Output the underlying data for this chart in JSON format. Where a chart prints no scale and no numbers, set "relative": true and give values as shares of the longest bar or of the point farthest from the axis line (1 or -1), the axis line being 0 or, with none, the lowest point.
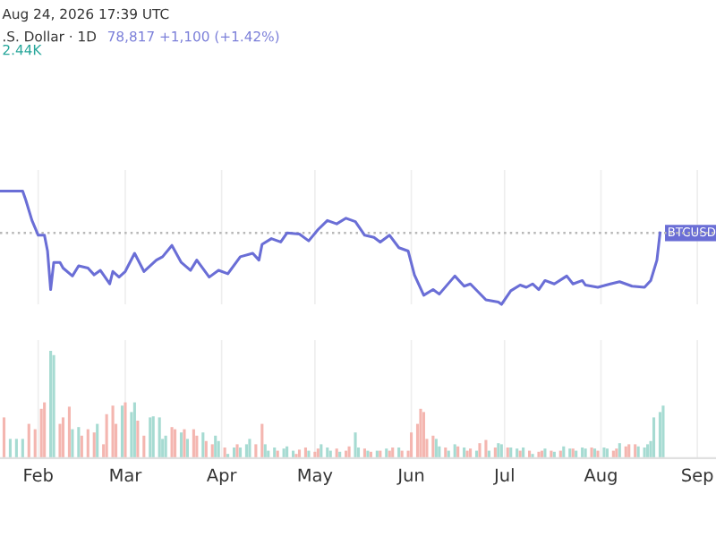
{
  "chart_data": [
    {
      "type": "line",
      "title": ".S. Dollar · 1D",
      "subtitle": "78,817 +1,100 (+1.42%)",
      "annotations": [
        "Aug 24, 2026 17:39 UTC"
      ],
      "relative": true,
      "grid": "x",
      "tick_labels": false,
      "xlim": [
        "2026-01-19T17:00",
        "2026-09-07"
      ],
      "xticks": [
        {
          "value": "2026-02-01",
          "label": null
        },
        {
          "value": "2026-03-01",
          "label": null
        },
        {
          "value": "2026-04-01",
          "label": null
        },
        {
          "value": "2026-05-01",
          "label": null
        },
        {
          "value": "2026-06-01",
          "label": null
        },
        {
          "value": "2026-07-01",
          "label": null
        },
        {
          "value": "2026-08-01",
          "label": null
        },
        {
          "value": "2026-09-01",
          "label": null
        }
      ],
      "ref_lines": [
        {
          "axis": "y",
          "value": 0.63,
          "label": "BTCUSD",
          "color": "#b8b8b8",
          "line_style": "dotted"
        }
      ],
      "series": [
        {
          "color": "#6a6ed6",
          "x": [
            "2026-01-20",
            "2026-01-27",
            "2026-01-28",
            "2026-01-30",
            "2026-02-01",
            "2026-02-03",
            "2026-02-04",
            "2026-02-05",
            "2026-02-06",
            "2026-02-08",
            "2026-02-09",
            "2026-02-12",
            "2026-02-14",
            "2026-02-17",
            "2026-02-19",
            "2026-02-21",
            "2026-02-24",
            "2026-02-25",
            "2026-02-27",
            "2026-03-01",
            "2026-03-04",
            "2026-03-07",
            "2026-03-11",
            "2026-03-13",
            "2026-03-16",
            "2026-03-19",
            "2026-03-22",
            "2026-03-24",
            "2026-03-28",
            "2026-03-31",
            "2026-04-03",
            "2026-04-07",
            "2026-04-11",
            "2026-04-13",
            "2026-04-14",
            "2026-04-17",
            "2026-04-20",
            "2026-04-22",
            "2026-04-26",
            "2026-04-29",
            "2026-05-02",
            "2026-05-05",
            "2026-05-08",
            "2026-05-11",
            "2026-05-14",
            "2026-05-17",
            "2026-05-20",
            "2026-05-22",
            "2026-05-25",
            "2026-05-28",
            "2026-05-31",
            "2026-06-02",
            "2026-06-05",
            "2026-06-08",
            "2026-06-10",
            "2026-06-15",
            "2026-06-18",
            "2026-06-20",
            "2026-06-25",
            "2026-06-29",
            "2026-06-30",
            "2026-07-03",
            "2026-07-06",
            "2026-07-08",
            "2026-07-10",
            "2026-07-12",
            "2026-07-14",
            "2026-07-17",
            "2026-07-21",
            "2026-07-23",
            "2026-07-26",
            "2026-07-27",
            "2026-07-31",
            "2026-08-04",
            "2026-08-07",
            "2026-08-11",
            "2026-08-15",
            "2026-08-17",
            "2026-08-19",
            "2026-08-20"
          ],
          "values": [
            1.0,
            1.0,
            0.92,
            0.74,
            0.61,
            0.61,
            0.47,
            0.13,
            0.37,
            0.37,
            0.32,
            0.25,
            0.34,
            0.32,
            0.26,
            0.3,
            0.18,
            0.29,
            0.24,
            0.29,
            0.45,
            0.29,
            0.39,
            0.42,
            0.52,
            0.37,
            0.3,
            0.39,
            0.24,
            0.3,
            0.27,
            0.42,
            0.45,
            0.39,
            0.53,
            0.58,
            0.55,
            0.63,
            0.62,
            0.56,
            0.66,
            0.74,
            0.71,
            0.76,
            0.73,
            0.61,
            0.59,
            0.55,
            0.61,
            0.5,
            0.47,
            0.26,
            0.08,
            0.13,
            0.09,
            0.25,
            0.16,
            0.18,
            0.04,
            0.02,
            0.0,
            0.12,
            0.17,
            0.15,
            0.18,
            0.13,
            0.21,
            0.18,
            0.25,
            0.18,
            0.21,
            0.17,
            0.15,
            0.18,
            0.2,
            0.16,
            0.15,
            0.21,
            0.39,
            0.63
          ]
        }
      ]
    },
    {
      "type": "bar",
      "annotations": [
        "2.44K"
      ],
      "relative": true,
      "grid": "x",
      "xlim": [
        "2026-01-19T17:00",
        "2026-09-07"
      ],
      "xticks": [
        {
          "value": "2026-02-01",
          "label": "Feb"
        },
        {
          "value": "2026-03-01",
          "label": "Mar"
        },
        {
          "value": "2026-04-01",
          "label": "Apr"
        },
        {
          "value": "2026-05-01",
          "label": "May"
        },
        {
          "value": "2026-06-01",
          "label": "Jun"
        },
        {
          "value": "2026-07-01",
          "label": "Jul"
        },
        {
          "value": "2026-08-01",
          "label": "Aug"
        },
        {
          "value": "2026-09-01",
          "label": "Sep"
        }
      ],
      "tick_labels": "x",
      "series": [
        {
          "x": [
            "2026-01-21",
            "2026-01-23",
            "2026-01-25",
            "2026-01-27",
            "2026-01-29",
            "2026-01-31",
            "2026-02-02",
            "2026-02-03",
            "2026-02-05",
            "2026-02-06",
            "2026-02-08",
            "2026-02-09",
            "2026-02-11",
            "2026-02-12",
            "2026-02-14",
            "2026-02-15",
            "2026-02-17",
            "2026-02-19",
            "2026-02-20",
            "2026-02-22",
            "2026-02-23",
            "2026-02-25",
            "2026-02-26",
            "2026-02-28",
            "2026-03-01",
            "2026-03-03",
            "2026-03-04",
            "2026-03-05",
            "2026-03-07",
            "2026-03-09",
            "2026-03-10",
            "2026-03-12",
            "2026-03-13",
            "2026-03-14",
            "2026-03-16",
            "2026-03-17",
            "2026-03-19",
            "2026-03-20",
            "2026-03-21",
            "2026-03-23",
            "2026-03-24",
            "2026-03-26",
            "2026-03-27",
            "2026-03-29",
            "2026-03-30",
            "2026-03-31",
            "2026-04-02",
            "2026-04-03",
            "2026-04-05",
            "2026-04-06",
            "2026-04-07",
            "2026-04-09",
            "2026-04-10",
            "2026-04-12",
            "2026-04-14",
            "2026-04-15",
            "2026-04-16",
            "2026-04-18",
            "2026-04-19",
            "2026-04-21",
            "2026-04-22",
            "2026-04-24",
            "2026-04-25",
            "2026-04-26",
            "2026-04-28",
            "2026-04-29",
            "2026-05-01",
            "2026-05-02",
            "2026-05-03",
            "2026-05-05",
            "2026-05-06",
            "2026-05-08",
            "2026-05-09",
            "2026-05-11",
            "2026-05-12",
            "2026-05-14",
            "2026-05-15",
            "2026-05-17",
            "2026-05-18",
            "2026-05-19",
            "2026-05-21",
            "2026-05-22",
            "2026-05-24",
            "2026-05-25",
            "2026-05-26",
            "2026-05-28",
            "2026-05-29",
            "2026-05-31",
            "2026-06-01",
            "2026-06-03",
            "2026-06-04",
            "2026-06-05",
            "2026-06-06",
            "2026-06-08",
            "2026-06-09",
            "2026-06-10",
            "2026-06-12",
            "2026-06-13",
            "2026-06-15",
            "2026-06-16",
            "2026-06-18",
            "2026-06-19",
            "2026-06-20",
            "2026-06-22",
            "2026-06-23",
            "2026-06-25",
            "2026-06-26",
            "2026-06-28",
            "2026-06-29",
            "2026-06-30",
            "2026-07-02",
            "2026-07-03",
            "2026-07-05",
            "2026-07-06",
            "2026-07-07",
            "2026-07-09",
            "2026-07-10",
            "2026-07-12",
            "2026-07-13",
            "2026-07-14",
            "2026-07-16",
            "2026-07-17",
            "2026-07-19",
            "2026-07-20",
            "2026-07-22",
            "2026-07-23",
            "2026-07-24",
            "2026-07-26",
            "2026-07-27",
            "2026-07-29",
            "2026-07-30",
            "2026-07-31",
            "2026-08-02",
            "2026-08-03",
            "2026-08-05",
            "2026-08-06",
            "2026-08-07",
            "2026-08-09",
            "2026-08-10",
            "2026-08-12",
            "2026-08-13",
            "2026-08-15",
            "2026-08-16",
            "2026-08-17",
            "2026-08-18",
            "2026-08-20",
            "2026-08-21"
          ],
          "values": [
            0.38,
            0.18,
            0.18,
            0.18,
            0.32,
            0.27,
            0.46,
            0.52,
            1.0,
            0.96,
            0.32,
            0.38,
            0.48,
            0.27,
            0.29,
            0.21,
            0.27,
            0.24,
            0.32,
            0.13,
            0.41,
            0.49,
            0.32,
            0.49,
            0.52,
            0.43,
            0.52,
            0.35,
            0.21,
            0.38,
            0.39,
            0.38,
            0.18,
            0.21,
            0.29,
            0.27,
            0.24,
            0.27,
            0.18,
            0.27,
            0.21,
            0.24,
            0.16,
            0.13,
            0.21,
            0.16,
            0.1,
            0.04,
            0.1,
            0.13,
            0.1,
            0.13,
            0.18,
            0.13,
            0.32,
            0.13,
            0.07,
            0.1,
            0.07,
            0.09,
            0.11,
            0.07,
            0.04,
            0.08,
            0.1,
            0.07,
            0.06,
            0.09,
            0.13,
            0.1,
            0.07,
            0.09,
            0.06,
            0.07,
            0.11,
            0.24,
            0.1,
            0.09,
            0.07,
            0.06,
            0.07,
            0.07,
            0.09,
            0.07,
            0.1,
            0.1,
            0.07,
            0.07,
            0.24,
            0.32,
            0.46,
            0.43,
            0.18,
            0.21,
            0.18,
            0.11,
            0.1,
            0.07,
            0.13,
            0.11,
            0.1,
            0.07,
            0.09,
            0.07,
            0.14,
            0.17,
            0.07,
            0.1,
            0.14,
            0.13,
            0.1,
            0.1,
            0.09,
            0.07,
            0.1,
            0.07,
            0.04,
            0.06,
            0.07,
            0.09,
            0.07,
            0.06,
            0.07,
            0.11,
            0.09,
            0.09,
            0.07,
            0.1,
            0.09,
            0.1,
            0.09,
            0.07,
            0.1,
            0.09,
            0.07,
            0.09,
            0.14,
            0.11,
            0.13,
            0.13,
            0.11,
            0.1,
            0.13,
            0.16,
            0.38,
            0.43,
            0.49
          ],
          "colors": [
            "#f4b6b0",
            "#a6dbd2",
            "#a6dbd2",
            "#a6dbd2",
            "#f4b6b0",
            "#f4b6b0",
            "#f4b6b0",
            "#f4b6b0",
            "#a6dbd2",
            "#a6dbd2",
            "#f4b6b0",
            "#f4b6b0",
            "#f4b6b0",
            "#a6dbd2",
            "#a6dbd2",
            "#f4b6b0",
            "#f4b6b0",
            "#f4b6b0",
            "#a6dbd2",
            "#f4b6b0",
            "#f4b6b0",
            "#f4b6b0",
            "#f4b6b0",
            "#a6dbd2",
            "#f4b6b0",
            "#a6dbd2",
            "#a6dbd2",
            "#f4b6b0",
            "#f4b6b0",
            "#a6dbd2",
            "#a6dbd2",
            "#a6dbd2",
            "#a6dbd2",
            "#a6dbd2",
            "#f4b6b0",
            "#f4b6b0",
            "#a6dbd2",
            "#f4b6b0",
            "#a6dbd2",
            "#f4b6b0",
            "#f4b6b0",
            "#a6dbd2",
            "#f4b6b0",
            "#f4b6b0",
            "#a6dbd2",
            "#a6dbd2",
            "#f4b6b0",
            "#a6dbd2",
            "#a6dbd2",
            "#f4b6b0",
            "#a6dbd2",
            "#a6dbd2",
            "#a6dbd2",
            "#f4b6b0",
            "#f4b6b0",
            "#a6dbd2",
            "#a6dbd2",
            "#a6dbd2",
            "#f4b6b0",
            "#a6dbd2",
            "#a6dbd2",
            "#a6dbd2",
            "#f4b6b0",
            "#f4b6b0",
            "#f4b6b0",
            "#a6dbd2",
            "#f4b6b0",
            "#f4b6b0",
            "#a6dbd2",
            "#a6dbd2",
            "#a6dbd2",
            "#f4b6b0",
            "#a6dbd2",
            "#f4b6b0",
            "#f4b6b0",
            "#a6dbd2",
            "#a6dbd2",
            "#f4b6b0",
            "#a6dbd2",
            "#f4b6b0",
            "#a6dbd2",
            "#f4b6b0",
            "#a6dbd2",
            "#f4b6b0",
            "#f4b6b0",
            "#a6dbd2",
            "#f4b6b0",
            "#f4b6b0",
            "#f4b6b0",
            "#f4b6b0",
            "#f4b6b0",
            "#f4b6b0",
            "#f4b6b0",
            "#f4b6b0",
            "#a6dbd2",
            "#a6dbd2",
            "#f4b6b0",
            "#a6dbd2",
            "#a6dbd2",
            "#f4b6b0",
            "#a6dbd2",
            "#f4b6b0",
            "#f4b6b0",
            "#a6dbd2",
            "#f4b6b0",
            "#f4b6b0",
            "#a6dbd2",
            "#f4b6b0",
            "#a6dbd2",
            "#a6dbd2",
            "#f4b6b0",
            "#a6dbd2",
            "#a6dbd2",
            "#f4b6b0",
            "#a6dbd2",
            "#f4b6b0",
            "#a6dbd2",
            "#f4b6b0",
            "#f4b6b0",
            "#a6dbd2",
            "#f4b6b0",
            "#a6dbd2",
            "#f4b6b0",
            "#a6dbd2",
            "#a6dbd2",
            "#f4b6b0",
            "#a6dbd2",
            "#a6dbd2",
            "#a6dbd2",
            "#f4b6b0",
            "#a6dbd2",
            "#f4b6b0",
            "#a6dbd2",
            "#a6dbd2",
            "#f4b6b0",
            "#f4b6b0",
            "#a6dbd2",
            "#f4b6b0",
            "#f4b6b0",
            "#f4b6b0",
            "#a6dbd2",
            "#a6dbd2",
            "#a6dbd2",
            "#a6dbd2",
            "#a6dbd2",
            "#a6dbd2",
            "#a6dbd2"
          ]
        }
      ]
    }
  ]
}
